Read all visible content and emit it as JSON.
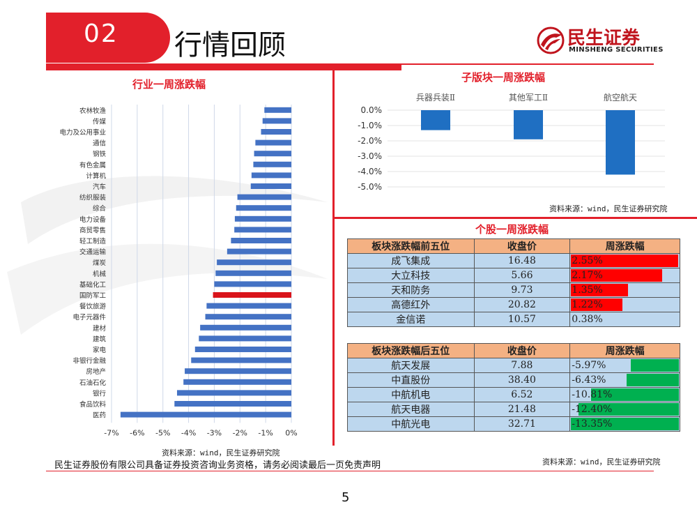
{
  "header": {
    "section_number": "02",
    "section_title": "行情回顾",
    "logo_cn": "民生证券",
    "logo_en": "MINSHENG SECURITIES"
  },
  "colors": {
    "brand_red": "#e2202b",
    "bar_blue": "#4472c4",
    "highlight_red": "#d9141b",
    "up_red": "#ff0000",
    "down_green": "#00b050",
    "table_header": "#f4b183",
    "table_cell": "#bdd7ee"
  },
  "left_panel": {
    "title": "行业一周涨跌幅",
    "source": "资料来源：wind，民生证券研究院"
  },
  "right_top": {
    "title": "子版块一周涨跌幅",
    "source": "资料来源：wind，民生证券研究院"
  },
  "right_bottom": {
    "title": "个股一周涨跌幅",
    "source": "资料来源：wind，民生证券研究院",
    "top5": {
      "headers": [
        "板块涨跌幅前五位",
        "收盘价",
        "周涨跌幅"
      ],
      "rows": [
        {
          "name": "成飞集成",
          "close": "16.48",
          "chg": "2.55%",
          "value": 2.55
        },
        {
          "name": "大立科技",
          "close": "5.66",
          "chg": "2.17%",
          "value": 2.17
        },
        {
          "name": "天和防务",
          "close": "9.73",
          "chg": "1.35%",
          "value": 1.35
        },
        {
          "name": "高德红外",
          "close": "20.82",
          "chg": "1.22%",
          "value": 1.22
        },
        {
          "name": "金信诺",
          "close": "10.57",
          "chg": "0.38%",
          "value": 0.38
        }
      ]
    },
    "bottom5": {
      "headers": [
        "板块涨跌幅后五位",
        "收盘价",
        "周涨跌幅"
      ],
      "rows": [
        {
          "name": "航天发展",
          "close": "7.88",
          "chg": "-5.97%",
          "value": -5.97
        },
        {
          "name": "中直股份",
          "close": "38.40",
          "chg": "-6.43%",
          "value": -6.43
        },
        {
          "name": "中航机电",
          "close": "6.52",
          "chg": "-10.81%",
          "value": -10.81
        },
        {
          "name": "航天电器",
          "close": "21.48",
          "chg": "-12.40%",
          "value": -12.4
        },
        {
          "name": "中航光电",
          "close": "32.71",
          "chg": "-13.35%",
          "value": -13.35
        }
      ]
    }
  },
  "chart_data": [
    {
      "type": "bar",
      "orientation": "horizontal",
      "title": "行业一周涨跌幅",
      "categories": [
        "农林牧渔",
        "传媒",
        "电力及公用事业",
        "通信",
        "钢铁",
        "有色金属",
        "计算机",
        "汽车",
        "纺织服装",
        "综合",
        "电力设备",
        "商贸零售",
        "轻工制造",
        "交通运输",
        "煤炭",
        "机械",
        "基础化工",
        "国防军工",
        "餐饮旅游",
        "电子元器件",
        "建材",
        "建筑",
        "家电",
        "非银行金融",
        "房地产",
        "石油石化",
        "银行",
        "食品饮料",
        "医药"
      ],
      "values": [
        -1.05,
        -1.12,
        -1.18,
        -1.4,
        -1.45,
        -1.48,
        -1.55,
        -1.58,
        -2.1,
        -2.15,
        -2.2,
        -2.22,
        -2.35,
        -2.5,
        -2.9,
        -2.95,
        -3.0,
        -3.05,
        -3.3,
        -3.35,
        -3.55,
        -3.6,
        -3.75,
        -3.9,
        -4.15,
        -4.2,
        -4.45,
        -4.55,
        -6.65
      ],
      "highlight": "国防军工",
      "xlim": [
        -7,
        0
      ],
      "xticks": [
        "-7%",
        "-6%",
        "-5%",
        "-4%",
        "-3%",
        "-2%",
        "-1%",
        "0%"
      ],
      "grid": true
    },
    {
      "type": "bar",
      "title": "子版块一周涨跌幅",
      "categories": [
        "兵器兵装Ⅱ",
        "其他军工Ⅱ",
        "航空航天"
      ],
      "values": [
        -1.3,
        -1.9,
        -4.2
      ],
      "ylim": [
        -5,
        0
      ],
      "yticks": [
        "0.0%",
        "-1.0%",
        "-2.0%",
        "-3.0%",
        "-4.0%",
        "-5.0%"
      ],
      "grid": true
    }
  ],
  "page": {
    "disclaimer": "民生证券股份有限公司具备证券投资咨询业务资格，请务必阅读最后一页免责声明",
    "page_number": "5"
  }
}
